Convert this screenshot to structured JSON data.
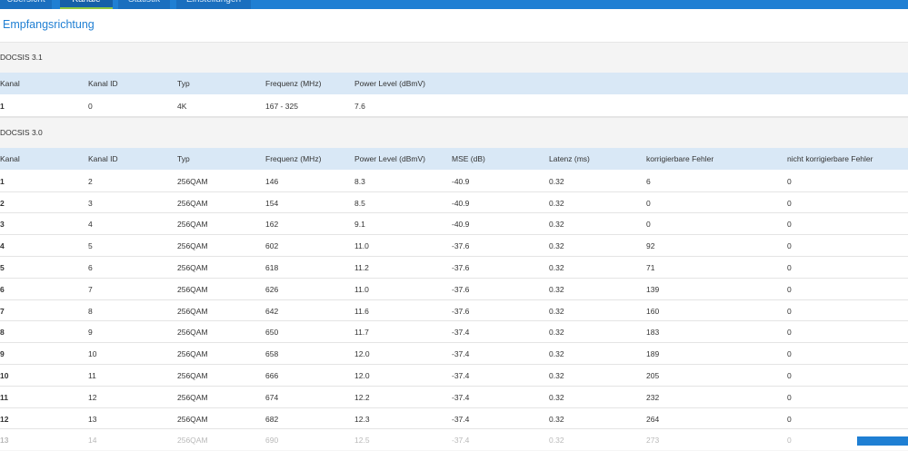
{
  "tabs": [
    "Übersicht",
    "Kanäle",
    "Statistik",
    "Einstellungen"
  ],
  "heading": "Empfangsrichtung",
  "sections": [
    {
      "title": "DOCSIS 3.1",
      "columns": [
        "Kanal",
        "Kanal ID",
        "Typ",
        "Frequenz (MHz)",
        "Power Level (dBmV)"
      ],
      "rows": [
        [
          "1",
          "0",
          "4K",
          "167 - 325",
          "7.6"
        ]
      ]
    },
    {
      "title": "DOCSIS 3.0",
      "columns": [
        "Kanal",
        "Kanal ID",
        "Typ",
        "Frequenz (MHz)",
        "Power Level (dBmV)",
        "MSE (dB)",
        "Latenz (ms)",
        "korrigierbare Fehler",
        "nicht korrigierbare Fehler"
      ],
      "rows": [
        [
          "1",
          "2",
          "256QAM",
          "146",
          "8.3",
          "-40.9",
          "0.32",
          "6",
          "0"
        ],
        [
          "2",
          "3",
          "256QAM",
          "154",
          "8.5",
          "-40.9",
          "0.32",
          "0",
          "0"
        ],
        [
          "3",
          "4",
          "256QAM",
          "162",
          "9.1",
          "-40.9",
          "0.32",
          "0",
          "0"
        ],
        [
          "4",
          "5",
          "256QAM",
          "602",
          "11.0",
          "-37.6",
          "0.32",
          "92",
          "0"
        ],
        [
          "5",
          "6",
          "256QAM",
          "618",
          "11.2",
          "-37.6",
          "0.32",
          "71",
          "0"
        ],
        [
          "6",
          "7",
          "256QAM",
          "626",
          "11.0",
          "-37.6",
          "0.32",
          "139",
          "0"
        ],
        [
          "7",
          "8",
          "256QAM",
          "642",
          "11.6",
          "-37.6",
          "0.32",
          "160",
          "0"
        ],
        [
          "8",
          "9",
          "256QAM",
          "650",
          "11.7",
          "-37.4",
          "0.32",
          "183",
          "0"
        ],
        [
          "9",
          "10",
          "256QAM",
          "658",
          "12.0",
          "-37.4",
          "0.32",
          "189",
          "0"
        ],
        [
          "10",
          "11",
          "256QAM",
          "666",
          "12.0",
          "-37.4",
          "0.32",
          "205",
          "0"
        ],
        [
          "11",
          "12",
          "256QAM",
          "674",
          "12.2",
          "-37.4",
          "0.32",
          "232",
          "0"
        ],
        [
          "12",
          "13",
          "256QAM",
          "682",
          "12.3",
          "-37.4",
          "0.32",
          "264",
          "0"
        ],
        [
          "13",
          "14",
          "256QAM",
          "690",
          "12.5",
          "-37.4",
          "0.32",
          "273",
          "0"
        ]
      ]
    }
  ]
}
